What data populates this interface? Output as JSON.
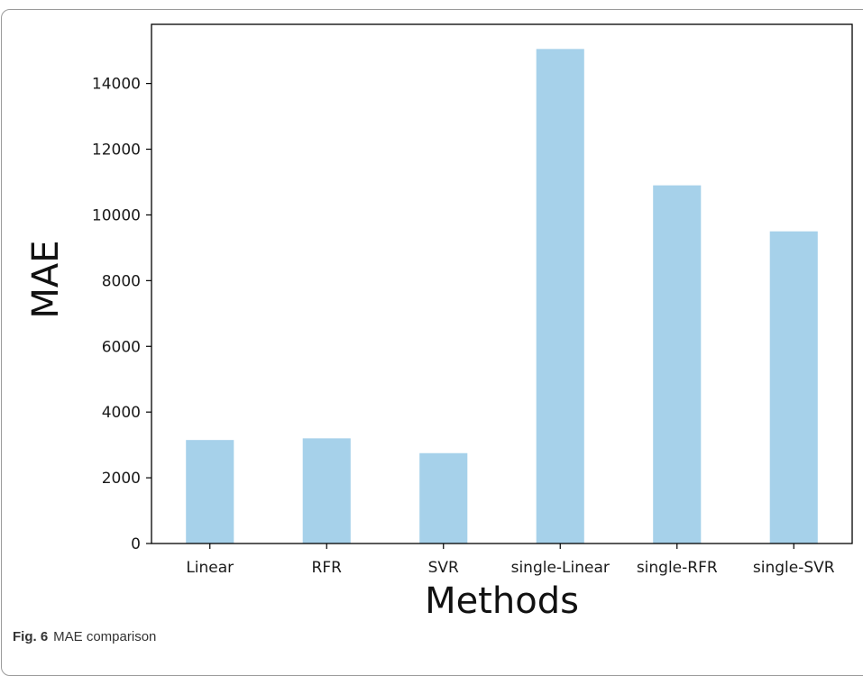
{
  "chart_data": {
    "type": "bar",
    "categories": [
      "Linear",
      "RFR",
      "SVR",
      "single-Linear",
      "single-RFR",
      "single-SVR"
    ],
    "values": [
      3150,
      3200,
      2750,
      15050,
      10900,
      9500
    ],
    "xlabel": "Methods",
    "ylabel": "MAE",
    "ylim": [
      0,
      15800
    ],
    "yticks": [
      0,
      2000,
      4000,
      6000,
      8000,
      10000,
      12000,
      14000
    ],
    "grid": false,
    "bar_color": "#a6d1ea"
  },
  "caption": {
    "figure_number": "Fig. 6",
    "text": "MAE comparison"
  }
}
